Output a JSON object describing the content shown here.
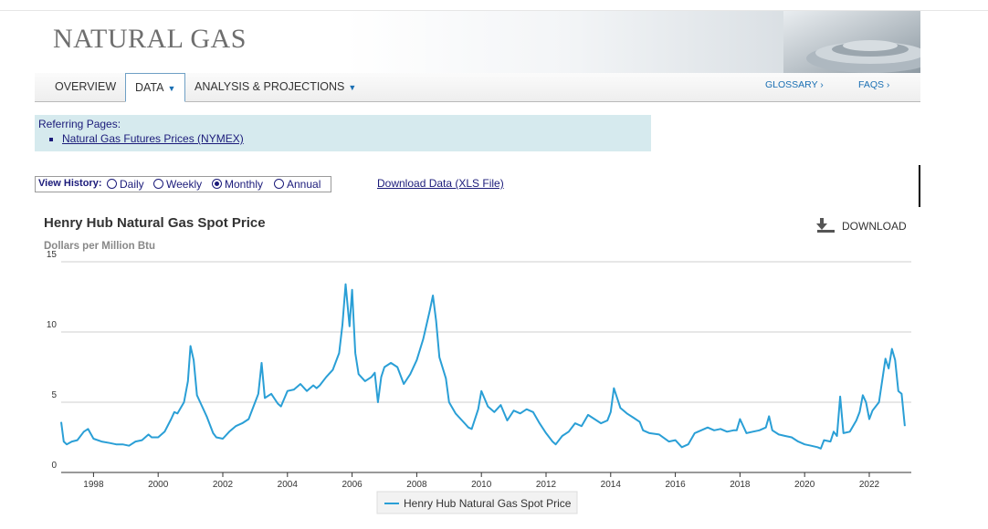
{
  "banner": {
    "title": "NATURAL GAS"
  },
  "nav": {
    "tabs": [
      {
        "label": "OVERVIEW"
      },
      {
        "label": "DATA"
      },
      {
        "label": "ANALYSIS & PROJECTIONS"
      }
    ],
    "right_links": [
      {
        "label": "GLOSSARY ›"
      },
      {
        "label": "FAQS ›"
      }
    ]
  },
  "referring": {
    "label": "Referring Pages:",
    "link": "Natural Gas Futures Prices (NYMEX)"
  },
  "history": {
    "label": "View History:",
    "options": [
      "Daily",
      "Weekly",
      "Monthly",
      "Annual"
    ],
    "selected": "Monthly"
  },
  "download_data": "Download Data (XLS File)",
  "chart_data": {
    "type": "line",
    "title": "Henry Hub Natural Gas Spot Price",
    "subtitle": "Dollars per Million Btu",
    "download_label": "DOWNLOAD",
    "ylim": [
      0,
      15
    ],
    "yticks": [
      "0",
      "5",
      "10",
      "15"
    ],
    "xlim": [
      1997.0,
      2023.3
    ],
    "xticks": [
      "1998",
      "2000",
      "2002",
      "2004",
      "2006",
      "2008",
      "2010",
      "2012",
      "2014",
      "2016",
      "2018",
      "2020",
      "2022"
    ],
    "grid": "horizontal",
    "legend": "bottom-center",
    "color": "#2a9fd6",
    "series": [
      {
        "name": "Henry Hub Natural Gas Spot Price",
        "x": [
          1997.0,
          1997.08,
          1997.17,
          1997.33,
          1997.5,
          1997.7,
          1997.83,
          1998.0,
          1998.25,
          1998.5,
          1998.7,
          1998.9,
          1999.1,
          1999.3,
          1999.5,
          1999.7,
          1999.8,
          2000.0,
          2000.2,
          2000.4,
          2000.5,
          2000.6,
          2000.8,
          2000.92,
          2001.0,
          2001.1,
          2001.2,
          2001.3,
          2001.5,
          2001.7,
          2001.8,
          2002.0,
          2002.2,
          2002.4,
          2002.6,
          2002.8,
          2003.0,
          2003.1,
          2003.2,
          2003.3,
          2003.5,
          2003.7,
          2003.8,
          2004.0,
          2004.2,
          2004.4,
          2004.6,
          2004.8,
          2004.9,
          2005.0,
          2005.2,
          2005.4,
          2005.6,
          2005.7,
          2005.8,
          2005.92,
          2006.0,
          2006.1,
          2006.2,
          2006.4,
          2006.6,
          2006.7,
          2006.8,
          2006.9,
          2007.0,
          2007.2,
          2007.4,
          2007.6,
          2007.8,
          2008.0,
          2008.2,
          2008.4,
          2008.5,
          2008.6,
          2008.7,
          2008.9,
          2009.0,
          2009.2,
          2009.4,
          2009.6,
          2009.7,
          2009.9,
          2010.0,
          2010.2,
          2010.4,
          2010.6,
          2010.8,
          2011.0,
          2011.2,
          2011.4,
          2011.6,
          2011.8,
          2012.0,
          2012.2,
          2012.3,
          2012.5,
          2012.7,
          2012.9,
          2013.1,
          2013.3,
          2013.5,
          2013.7,
          2013.9,
          2014.0,
          2014.1,
          2014.3,
          2014.5,
          2014.7,
          2014.9,
          2015.0,
          2015.2,
          2015.5,
          2015.8,
          2016.0,
          2016.2,
          2016.4,
          2016.6,
          2016.8,
          2017.0,
          2017.2,
          2017.4,
          2017.6,
          2017.8,
          2017.9,
          2018.0,
          2018.2,
          2018.4,
          2018.6,
          2018.8,
          2018.9,
          2019.0,
          2019.2,
          2019.4,
          2019.6,
          2019.8,
          2020.0,
          2020.2,
          2020.4,
          2020.5,
          2020.6,
          2020.8,
          2020.9,
          2021.0,
          2021.1,
          2021.2,
          2021.4,
          2021.6,
          2021.7,
          2021.8,
          2021.9,
          2022.0,
          2022.1,
          2022.3,
          2022.5,
          2022.6,
          2022.7,
          2022.8,
          2022.9,
          2023.0,
          2023.1
        ],
        "values": [
          3.6,
          2.2,
          2.0,
          2.2,
          2.3,
          2.9,
          3.1,
          2.4,
          2.2,
          2.1,
          2.0,
          2.0,
          1.9,
          2.2,
          2.3,
          2.7,
          2.5,
          2.5,
          2.9,
          3.8,
          4.3,
          4.2,
          5.0,
          6.5,
          9.0,
          8.0,
          5.5,
          5.0,
          4.0,
          2.8,
          2.5,
          2.4,
          2.9,
          3.3,
          3.5,
          3.8,
          5.0,
          5.6,
          7.8,
          5.3,
          5.6,
          4.9,
          4.7,
          5.8,
          5.9,
          6.3,
          5.8,
          6.2,
          6.0,
          6.2,
          6.8,
          7.3,
          8.5,
          10.5,
          13.4,
          10.4,
          13.0,
          8.5,
          7.0,
          6.5,
          6.8,
          7.1,
          5.0,
          6.8,
          7.5,
          7.8,
          7.5,
          6.3,
          7.0,
          8.0,
          9.5,
          11.5,
          12.6,
          10.8,
          8.2,
          6.7,
          5.0,
          4.2,
          3.7,
          3.2,
          3.1,
          4.5,
          5.8,
          4.7,
          4.3,
          4.8,
          3.7,
          4.4,
          4.2,
          4.5,
          4.3,
          3.5,
          2.8,
          2.2,
          2.0,
          2.6,
          2.9,
          3.5,
          3.3,
          4.1,
          3.8,
          3.5,
          3.7,
          4.3,
          6.0,
          4.6,
          4.2,
          3.9,
          3.6,
          3.0,
          2.8,
          2.7,
          2.2,
          2.3,
          1.8,
          2.0,
          2.8,
          3.0,
          3.2,
          3.0,
          3.1,
          2.9,
          3.0,
          3.0,
          3.8,
          2.8,
          2.9,
          3.0,
          3.2,
          4.0,
          3.0,
          2.7,
          2.6,
          2.5,
          2.2,
          2.0,
          1.9,
          1.8,
          1.7,
          2.3,
          2.2,
          2.9,
          2.6,
          5.4,
          2.8,
          2.9,
          3.7,
          4.3,
          5.5,
          5.0,
          3.8,
          4.4,
          5.0,
          8.1,
          7.4,
          8.8,
          8.0,
          5.8,
          5.6,
          3.3
        ]
      }
    ]
  }
}
